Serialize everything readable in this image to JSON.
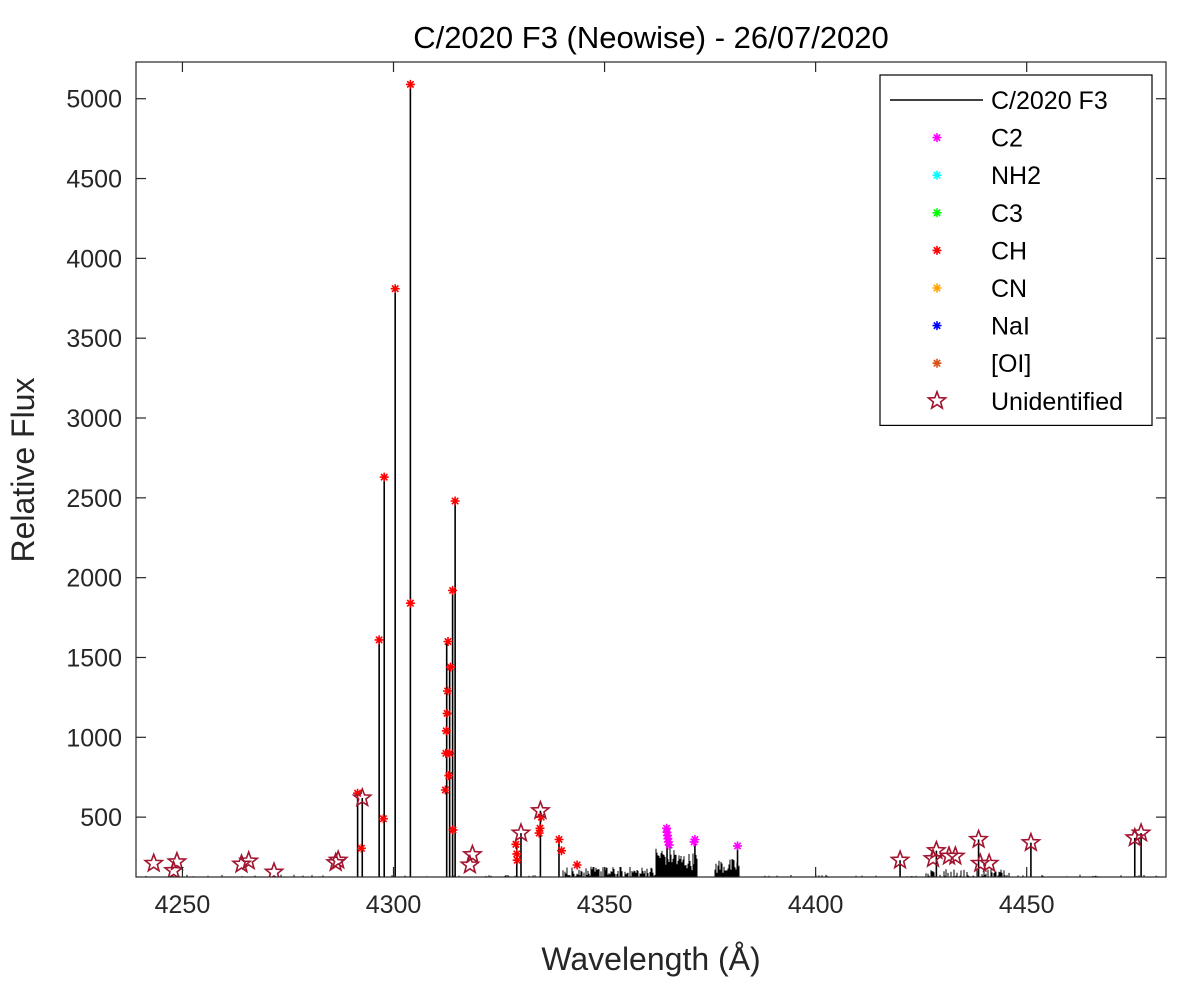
{
  "chart_data": {
    "type": "line",
    "title": "C/2020 F3 (Neowise) - 26/07/2020",
    "xlabel": "Wavelength (Å)",
    "ylabel": "Relative Flux",
    "xlim": [
      4239,
      4483
    ],
    "ylim": [
      125,
      5230
    ],
    "x_ticks": [
      4250,
      4300,
      4350,
      4400,
      4450
    ],
    "y_ticks": [
      500,
      1000,
      1500,
      2000,
      2500,
      3000,
      3500,
      4000,
      4500,
      5000
    ],
    "grid": false,
    "legend_position": "top-right",
    "series": [
      {
        "name": "C/2020 F3",
        "kind": "line",
        "color": "#000000",
        "lines": [
          [
            4291.5,
            650
          ],
          [
            4292.6,
            620
          ],
          [
            4296.6,
            1610
          ],
          [
            4297.8,
            2630
          ],
          [
            4300.4,
            3810
          ],
          [
            4304.0,
            5090
          ],
          [
            4312.6,
            1600
          ],
          [
            4313.3,
            1440
          ],
          [
            4314.0,
            1920
          ],
          [
            4314.6,
            2480
          ],
          [
            4329.2,
            330
          ],
          [
            4330.2,
            400
          ],
          [
            4334.8,
            540
          ],
          [
            4339.2,
            360
          ],
          [
            4364.8,
            420
          ],
          [
            4371.4,
            360
          ],
          [
            4381.5,
            320
          ],
          [
            4420.0,
            230
          ],
          [
            4428.6,
            290
          ],
          [
            4438.6,
            360
          ],
          [
            4451.0,
            340
          ],
          [
            4475.6,
            370
          ],
          [
            4477.1,
            400
          ]
        ],
        "dense_regions": [
          [
            4340,
            4362,
            190
          ],
          [
            4362,
            4367,
            320
          ],
          [
            4367,
            4372,
            280
          ],
          [
            4376,
            4382,
            240
          ],
          [
            4426,
            4446,
            175
          ]
        ]
      },
      {
        "name": "C2",
        "kind": "marker",
        "marker": "asterisk",
        "color": "#ff00ff",
        "points": [
          [
            4364.7,
            430
          ],
          [
            4364.8,
            405
          ],
          [
            4364.9,
            385
          ],
          [
            4365.0,
            365
          ],
          [
            4365.1,
            345
          ],
          [
            4365.3,
            325
          ],
          [
            4371.4,
            360
          ],
          [
            4371.2,
            345
          ],
          [
            4381.5,
            320
          ]
        ]
      },
      {
        "name": "NH2",
        "kind": "marker",
        "marker": "asterisk",
        "color": "#00ffff",
        "points": []
      },
      {
        "name": "C3",
        "kind": "marker",
        "marker": "asterisk",
        "color": "#00ff00",
        "points": []
      },
      {
        "name": "CH",
        "kind": "marker",
        "marker": "asterisk",
        "color": "#ff0000",
        "points": [
          [
            4291.5,
            650
          ],
          [
            4292.4,
            305
          ],
          [
            4296.6,
            1610
          ],
          [
            4297.8,
            2630
          ],
          [
            4297.6,
            490
          ],
          [
            4300.4,
            3810
          ],
          [
            4304.0,
            5090
          ],
          [
            4304.0,
            1840
          ],
          [
            4312.3,
            670
          ],
          [
            4312.4,
            900
          ],
          [
            4312.5,
            1040
          ],
          [
            4312.7,
            1150
          ],
          [
            4312.8,
            1290
          ],
          [
            4312.9,
            1600
          ],
          [
            4313.1,
            760
          ],
          [
            4313.3,
            900
          ],
          [
            4313.5,
            1440
          ],
          [
            4314.0,
            1920
          ],
          [
            4314.1,
            420
          ],
          [
            4314.6,
            2480
          ],
          [
            4329.0,
            330
          ],
          [
            4329.2,
            270
          ],
          [
            4329.3,
            230
          ],
          [
            4334.5,
            400
          ],
          [
            4334.7,
            430
          ],
          [
            4335.0,
            500
          ],
          [
            4339.2,
            360
          ],
          [
            4339.8,
            290
          ],
          [
            4343.5,
            200
          ]
        ]
      },
      {
        "name": "CN",
        "kind": "marker",
        "marker": "asterisk",
        "color": "#ffa500",
        "points": []
      },
      {
        "name": "NaI",
        "kind": "marker",
        "marker": "asterisk",
        "color": "#0000ff",
        "points": []
      },
      {
        "name": "[OI]",
        "kind": "marker",
        "marker": "asterisk",
        "color": "#d95319",
        "points": []
      },
      {
        "name": "Unidentified",
        "kind": "marker",
        "marker": "pentagram",
        "color": "#a2142f",
        "points": [
          [
            4243.2,
            210
          ],
          [
            4247.9,
            165
          ],
          [
            4248.7,
            220
          ],
          [
            4264.0,
            205
          ],
          [
            4265.7,
            225
          ],
          [
            4271.7,
            155
          ],
          [
            4286.3,
            215
          ],
          [
            4286.9,
            230
          ],
          [
            4292.6,
            620
          ],
          [
            4318.1,
            200
          ],
          [
            4318.7,
            265
          ],
          [
            4330.2,
            400
          ],
          [
            4334.8,
            540
          ],
          [
            4420.0,
            230
          ],
          [
            4427.8,
            240
          ],
          [
            4428.6,
            290
          ],
          [
            4431.6,
            255
          ],
          [
            4433.1,
            255
          ],
          [
            4438.6,
            360
          ],
          [
            4439.0,
            210
          ],
          [
            4441.1,
            210
          ],
          [
            4451.0,
            340
          ],
          [
            4475.6,
            370
          ],
          [
            4477.1,
            400
          ]
        ]
      }
    ]
  }
}
